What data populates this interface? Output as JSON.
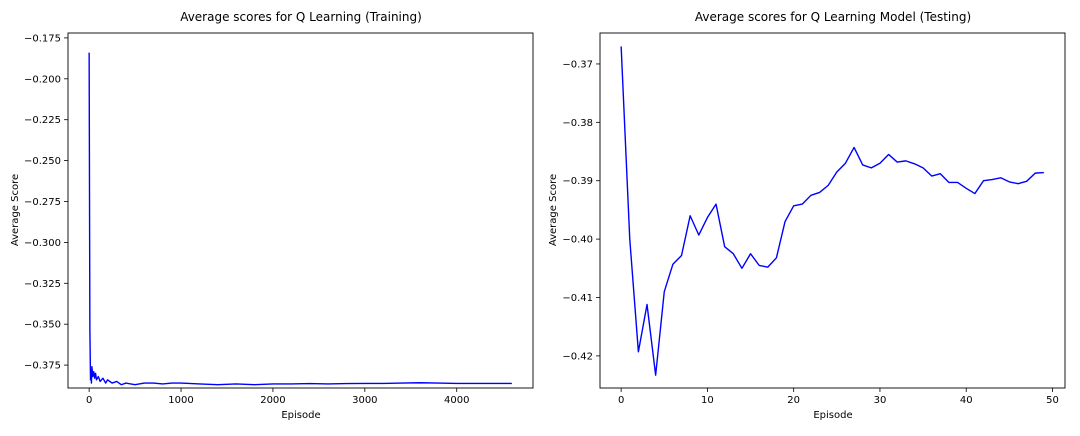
{
  "chart_data": [
    {
      "type": "line",
      "title": "Average scores for Q Learning (Training)",
      "xlabel": "Episode",
      "ylabel": "Average Score",
      "xlim": [
        -230,
        4830
      ],
      "ylim": [
        -0.389,
        -0.172
      ],
      "xticks": [
        0,
        1000,
        2000,
        3000,
        4000
      ],
      "xtick_labels": [
        "0",
        "1000",
        "2000",
        "3000",
        "4000"
      ],
      "yticks": [
        -0.375,
        -0.35,
        -0.325,
        -0.3,
        -0.275,
        -0.25,
        -0.225,
        -0.2,
        -0.175
      ],
      "ytick_labels": [
        "−0.375",
        "−0.350",
        "−0.325",
        "−0.300",
        "−0.275",
        "−0.250",
        "−0.225",
        "−0.200",
        "−0.175"
      ],
      "grid": false,
      "color": "#0000ff",
      "series": [
        {
          "x": [
            0,
            8,
            15,
            20,
            25,
            30,
            40,
            50,
            60,
            70,
            80,
            100,
            120,
            150,
            180,
            200,
            250,
            300,
            350,
            400,
            500,
            600,
            700,
            800,
            900,
            1000,
            1200,
            1400,
            1600,
            1800,
            2000,
            2200,
            2400,
            2600,
            2800,
            3000,
            3200,
            3400,
            3600,
            3800,
            4000,
            4200,
            4400,
            4600
          ],
          "y": [
            -0.184,
            -0.353,
            -0.384,
            -0.379,
            -0.386,
            -0.376,
            -0.382,
            -0.379,
            -0.383,
            -0.38,
            -0.384,
            -0.382,
            -0.385,
            -0.383,
            -0.386,
            -0.384,
            -0.386,
            -0.385,
            -0.387,
            -0.386,
            -0.387,
            -0.386,
            -0.386,
            -0.3865,
            -0.386,
            -0.386,
            -0.3865,
            -0.387,
            -0.3865,
            -0.387,
            -0.3865,
            -0.3865,
            -0.3863,
            -0.3865,
            -0.3863,
            -0.3862,
            -0.3862,
            -0.386,
            -0.3858,
            -0.386,
            -0.3862,
            -0.3862,
            -0.3862,
            -0.3862
          ]
        }
      ]
    },
    {
      "type": "line",
      "title": "Average scores for Q Learning Model (Testing)",
      "xlabel": "Episode",
      "ylabel": "Average Score",
      "xlim": [
        -2.45,
        51.45
      ],
      "ylim": [
        -0.4255,
        -0.3647
      ],
      "xticks": [
        0,
        10,
        20,
        30,
        40,
        50
      ],
      "xtick_labels": [
        "0",
        "10",
        "20",
        "30",
        "40",
        "50"
      ],
      "yticks": [
        -0.42,
        -0.41,
        -0.4,
        -0.39,
        -0.38,
        -0.37
      ],
      "ytick_labels": [
        "−0.42",
        "−0.41",
        "−0.40",
        "−0.39",
        "−0.38",
        "−0.37"
      ],
      "grid": false,
      "color": "#0000ff",
      "series": [
        {
          "x": [
            0,
            1,
            2,
            3,
            4,
            5,
            6,
            7,
            8,
            9,
            10,
            11,
            12,
            13,
            14,
            15,
            16,
            17,
            18,
            19,
            20,
            21,
            22,
            23,
            24,
            25,
            26,
            27,
            28,
            29,
            30,
            31,
            32,
            33,
            34,
            35,
            36,
            37,
            38,
            39,
            40,
            41,
            42,
            43,
            44,
            45,
            46,
            47,
            48,
            49
          ],
          "y": [
            -0.367,
            -0.4,
            -0.4193,
            -0.4112,
            -0.4233,
            -0.409,
            -0.4043,
            -0.4028,
            -0.396,
            -0.3993,
            -0.3963,
            -0.394,
            -0.4013,
            -0.4025,
            -0.405,
            -0.4025,
            -0.4045,
            -0.4048,
            -0.4032,
            -0.397,
            -0.3943,
            -0.394,
            -0.3925,
            -0.392,
            -0.3908,
            -0.3885,
            -0.387,
            -0.3843,
            -0.3873,
            -0.3878,
            -0.387,
            -0.3855,
            -0.3868,
            -0.3866,
            -0.3871,
            -0.3878,
            -0.3892,
            -0.3888,
            -0.3903,
            -0.3903,
            -0.3913,
            -0.3922,
            -0.39,
            -0.3898,
            -0.3895,
            -0.3902,
            -0.3905,
            -0.3901,
            -0.3887,
            -0.3886
          ]
        }
      ]
    }
  ]
}
